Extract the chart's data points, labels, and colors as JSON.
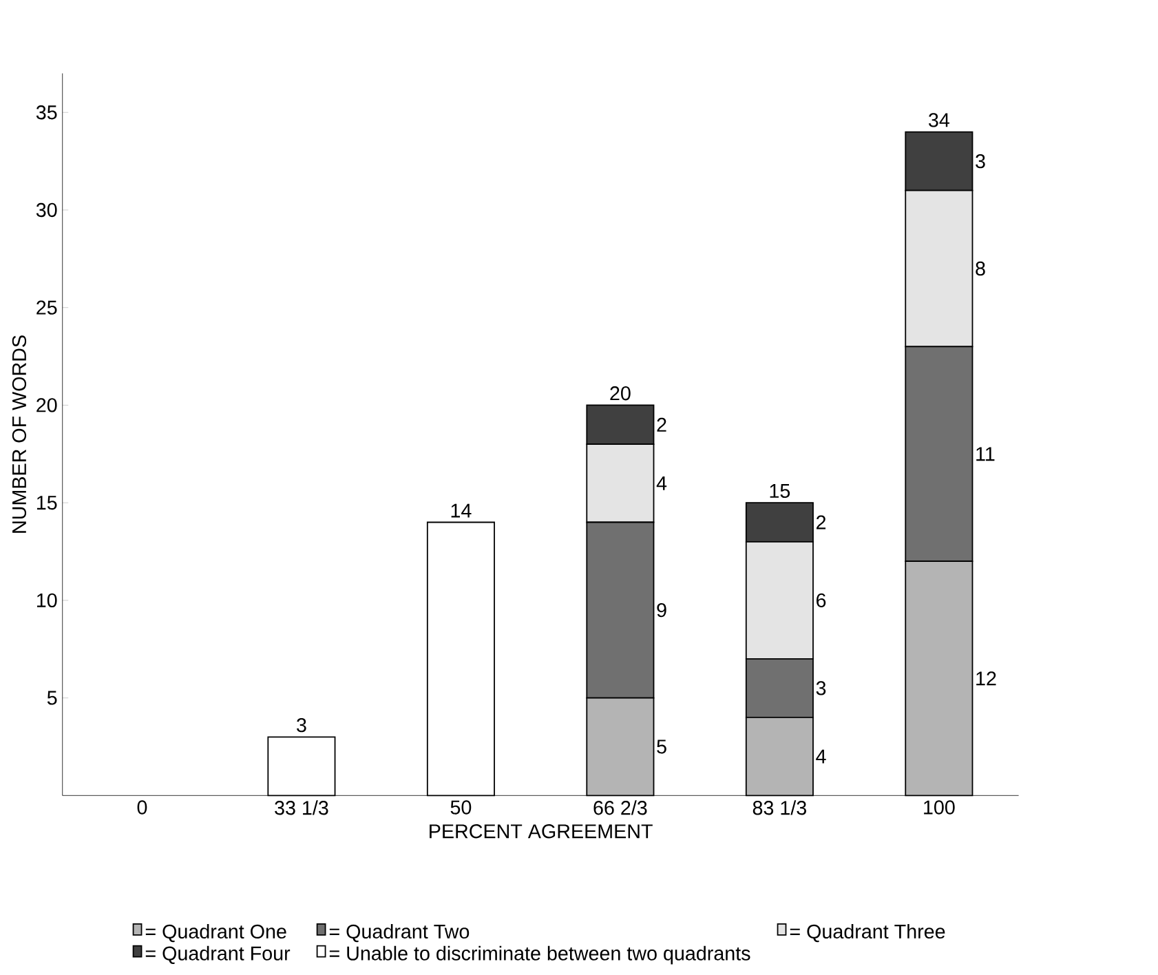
{
  "chart_data": {
    "type": "bar",
    "stacked": true,
    "xlabel": "PERCENT AGREEMENT",
    "ylabel": "NUMBER OF WORDS",
    "categories": [
      "0",
      "33 1/3",
      "50",
      "66 2/3",
      "83 1/3",
      "100"
    ],
    "ylim": [
      0,
      37
    ],
    "yticks": [
      5,
      10,
      15,
      20,
      25,
      30,
      35
    ],
    "legend": "bottom",
    "grid": false,
    "series": [
      {
        "name": "= Quadrant One",
        "color": "#b4b4b4",
        "values": [
          null,
          null,
          null,
          5,
          4,
          12
        ],
        "value_labels": [
          null,
          null,
          null,
          "5",
          "4",
          "12"
        ]
      },
      {
        "name": "= Quadrant Two",
        "color": "#707070",
        "values": [
          null,
          null,
          null,
          9,
          3,
          11
        ],
        "value_labels": [
          null,
          null,
          null,
          "9",
          "3",
          "11"
        ]
      },
      {
        "name": "= Quadrant Three",
        "color": "#e4e4e4",
        "values": [
          null,
          null,
          null,
          4,
          6,
          8
        ],
        "value_labels": [
          null,
          null,
          null,
          "4",
          "6",
          "8"
        ]
      },
      {
        "name": "= Quadrant Four",
        "color": "#404040",
        "values": [
          null,
          null,
          null,
          2,
          2,
          3
        ],
        "value_labels": [
          null,
          null,
          null,
          "2",
          "2",
          "3"
        ]
      },
      {
        "name": "= Unable to discriminate between two quadrants",
        "color": "#ffffff",
        "values": [
          null,
          3,
          14,
          null,
          null,
          null
        ],
        "value_labels": [
          null,
          "3",
          "14",
          null,
          null,
          null
        ]
      }
    ],
    "totals": [
      null,
      null,
      null,
      "20",
      "15",
      "34"
    ]
  }
}
